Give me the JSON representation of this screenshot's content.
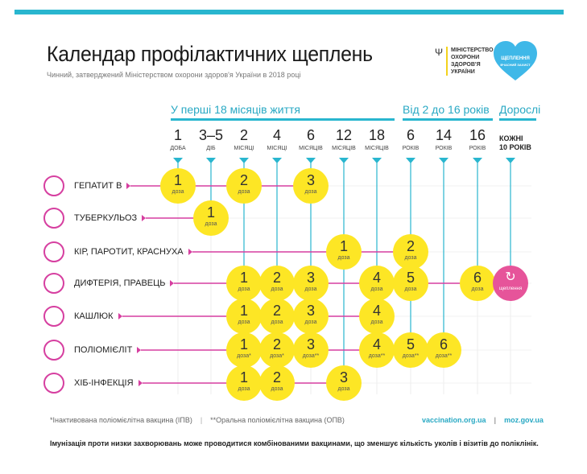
{
  "title": "Календар профілактичних щеплень",
  "subtitle": "Чинний, затверджений Міністерством охорони здоров'я України в 2018 році",
  "ministry": {
    "emblem": "тризуб",
    "lines": [
      "МІНІСТЕРСТВО",
      "ОХОРОНИ",
      "ЗДОРОВ'Я",
      "УКРАЇНИ"
    ]
  },
  "heart_logo": {
    "text": "ЩЕПЛЕННЯ",
    "sub": "ВЧАСНИЙ ЗАХИСТ"
  },
  "groups": [
    {
      "label": "У перші 18 місяців життя"
    },
    {
      "label": "Від 2 до 16 років"
    },
    {
      "label": "Дорослі"
    }
  ],
  "columns": [
    {
      "num": "1",
      "unit": "ДОБА"
    },
    {
      "num": "3–5",
      "unit": "ДІБ"
    },
    {
      "num": "2",
      "unit": "МІСЯЦІ"
    },
    {
      "num": "4",
      "unit": "МІСЯЦІ"
    },
    {
      "num": "6",
      "unit": "МІСЯЦІВ"
    },
    {
      "num": "12",
      "unit": "МІСЯЦІВ"
    },
    {
      "num": "18",
      "unit": "МІСЯЦІВ"
    },
    {
      "num": "6",
      "unit": "РОКІВ"
    },
    {
      "num": "14",
      "unit": "РОКІВ"
    },
    {
      "num": "16",
      "unit": "РОКІВ"
    },
    {
      "num": "",
      "unit": ""
    }
  ],
  "adults_column": {
    "line1": "КОЖНІ",
    "line2": "10 РОКІВ"
  },
  "dose_unit": "доза",
  "revaccination_label": "щеплення",
  "colors": {
    "accent": "#29b6cf",
    "dose": "#fde625",
    "line": "#d63fa0",
    "revac": "#e6549a"
  },
  "rows": [
    {
      "label": "ГЕПАТИТ В",
      "icon": "hepatitis-b-virus-icon",
      "doses": [
        {
          "col": 0,
          "n": "1",
          "mark": ""
        },
        {
          "col": 2,
          "n": "2",
          "mark": ""
        },
        {
          "col": 4,
          "n": "3",
          "mark": ""
        }
      ]
    },
    {
      "label": "ТУБЕРКУЛЬОЗ",
      "icon": "tuberculosis-bacteria-icon",
      "doses": [
        {
          "col": 1,
          "n": "1",
          "mark": ""
        }
      ]
    },
    {
      "label": "КІР, ПАРОТИТ, КРАСНУХА",
      "icon": "measles-virus-icon",
      "doses": [
        {
          "col": 5,
          "n": "1",
          "mark": ""
        },
        {
          "col": 7,
          "n": "2",
          "mark": ""
        }
      ]
    },
    {
      "label": "ДИФТЕРІЯ, ПРАВЕЦЬ",
      "icon": "diphtheria-icon",
      "doses": [
        {
          "col": 2,
          "n": "1",
          "mark": ""
        },
        {
          "col": 3,
          "n": "2",
          "mark": ""
        },
        {
          "col": 4,
          "n": "3",
          "mark": ""
        },
        {
          "col": 6,
          "n": "4",
          "mark": ""
        },
        {
          "col": 7,
          "n": "5",
          "mark": ""
        },
        {
          "col": 9,
          "n": "6",
          "mark": ""
        },
        {
          "col": 10,
          "n": "↻",
          "mark": "",
          "revac": true
        }
      ]
    },
    {
      "label": "КАШЛЮК",
      "icon": "pertussis-bacteria-icon",
      "doses": [
        {
          "col": 2,
          "n": "1",
          "mark": ""
        },
        {
          "col": 3,
          "n": "2",
          "mark": ""
        },
        {
          "col": 4,
          "n": "3",
          "mark": ""
        },
        {
          "col": 6,
          "n": "4",
          "mark": ""
        }
      ]
    },
    {
      "label": "ПОЛІОМІЄЛІТ",
      "icon": "polio-virus-icon",
      "doses": [
        {
          "col": 2,
          "n": "1",
          "mark": "*"
        },
        {
          "col": 3,
          "n": "2",
          "mark": "*"
        },
        {
          "col": 4,
          "n": "3",
          "mark": "**"
        },
        {
          "col": 6,
          "n": "4",
          "mark": "**"
        },
        {
          "col": 7,
          "n": "5",
          "mark": "**"
        },
        {
          "col": 8,
          "n": "6",
          "mark": "**"
        }
      ]
    },
    {
      "label": "ХІБ-ІНФЕКЦІЯ",
      "icon": "hib-bacteria-icon",
      "doses": [
        {
          "col": 2,
          "n": "1",
          "mark": ""
        },
        {
          "col": 3,
          "n": "2",
          "mark": ""
        },
        {
          "col": 5,
          "n": "3",
          "mark": ""
        }
      ]
    }
  ],
  "footnotes": {
    "ipv": "*Інактивована поліомієлітна вакцина (ІПВ)",
    "opv": "**Оральна поліомієлітна вакцина (ОПВ)",
    "sep": "|"
  },
  "links": {
    "site1": "vaccination.org.ua",
    "sep": "|",
    "site2": "moz.gov.ua"
  },
  "note": "Імунізація проти низки захворювань може проводитися комбінованими вакцинами, що зменшує кількість уколів і візитів до поліклінік."
}
